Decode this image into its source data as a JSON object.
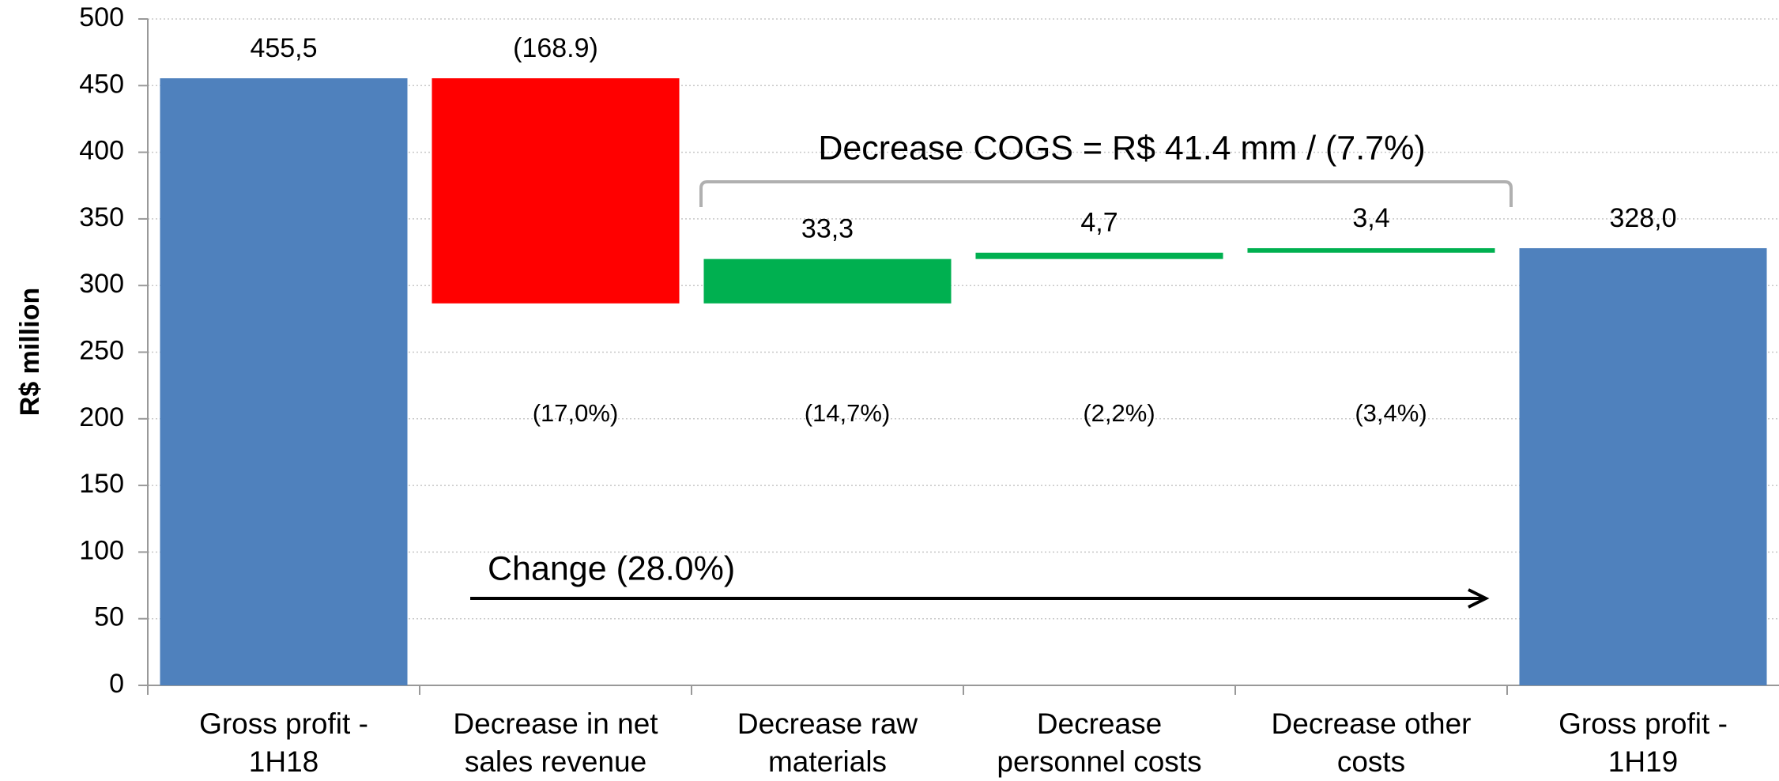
{
  "chart_data": {
    "type": "waterfall",
    "ylabel": "R$ million",
    "categories": [
      "Gross profit - 1H18",
      "Decrease in net sales revenue",
      "Decrease raw materials",
      "Decrease personnel costs",
      "Decrease other costs",
      "Gross profit - 1H19"
    ],
    "values": [
      455.5,
      -168.9,
      33.3,
      4.7,
      3.4,
      328.0
    ],
    "value_labels": [
      "455,5",
      "(168.9)",
      "33,3",
      "4,7",
      "3,4",
      "328,0"
    ],
    "colors": [
      "#4f81bd",
      "#ff0000",
      "#00b050",
      "#00b050",
      "#00b050",
      "#4f81bd"
    ],
    "percent_labels": [
      "(17,0%)",
      "(14,7%)",
      "(2,2%)",
      "(3,4%)"
    ],
    "annotations": [
      "Decrease COGS = R$ 41.4 mm / (7.7%)",
      "Change (28.0%)"
    ],
    "ylim": [
      0,
      500
    ],
    "yticks": [
      0,
      50,
      100,
      150,
      200,
      250,
      300,
      350,
      400,
      450,
      500
    ],
    "grid": true
  }
}
